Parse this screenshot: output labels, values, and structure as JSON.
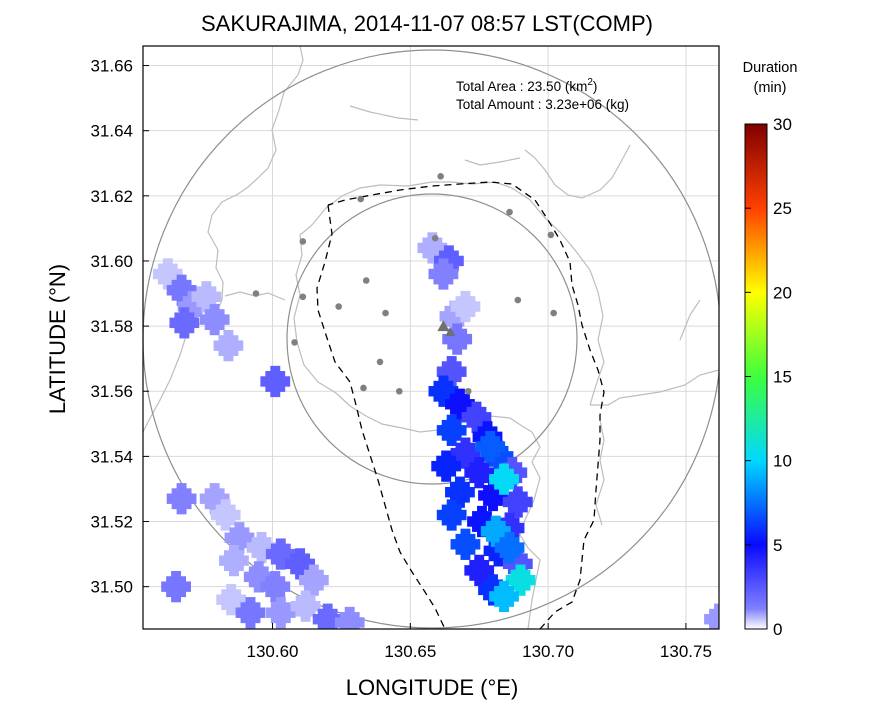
{
  "chart_data": {
    "type": "heatmap",
    "title": "SAKURAJIMA, 2014-11-07 08:57 LST(COMP)",
    "xlabel": "LONGITUDE (°E)",
    "ylabel": "LATITUDE (°N)",
    "xlim": [
      130.553,
      130.762
    ],
    "ylim": [
      31.487,
      31.666
    ],
    "xticks": [
      130.6,
      130.65,
      130.7,
      130.75
    ],
    "xtick_labels": [
      "130.60",
      "130.65",
      "130.70",
      "130.75"
    ],
    "yticks": [
      31.5,
      31.52,
      31.54,
      31.56,
      31.58,
      31.6,
      31.62,
      31.64,
      31.66
    ],
    "ytick_labels": [
      "31.50",
      "31.52",
      "31.54",
      "31.56",
      "31.58",
      "31.60",
      "31.62",
      "31.64",
      "31.66"
    ],
    "grid": true,
    "annotation": {
      "area_label": "Total Area   : 23.50 (km",
      "area_sup": "2",
      "area_close": ")",
      "amount_label": "Total Amount : 3.23e+06 (kg)"
    },
    "colorbar": {
      "title_line1": "Duration",
      "title_line2": "(min)",
      "min": 0,
      "max": 30,
      "ticks": [
        0,
        5,
        10,
        15,
        20,
        25,
        30
      ],
      "tick_labels": [
        "0",
        "5",
        "10",
        "15",
        "20",
        "25",
        "30"
      ],
      "colors": [
        "#ffffff",
        "#0a0aff",
        "#00d8ff",
        "#3dff3d",
        "#ffff00",
        "#ff8000",
        "#ff0000",
        "#800000"
      ]
    },
    "vent": {
      "lon": 130.662,
      "lat": 31.58
    },
    "stations": [
      {
        "lon": 130.661,
        "lat": 31.626
      },
      {
        "lon": 130.632,
        "lat": 31.619
      },
      {
        "lon": 130.686,
        "lat": 31.615
      },
      {
        "lon": 130.611,
        "lat": 31.606
      },
      {
        "lon": 130.659,
        "lat": 31.607
      },
      {
        "lon": 130.701,
        "lat": 31.608
      },
      {
        "lon": 130.594,
        "lat": 31.59
      },
      {
        "lon": 130.611,
        "lat": 31.589
      },
      {
        "lon": 130.634,
        "lat": 31.594
      },
      {
        "lon": 130.689,
        "lat": 31.588
      },
      {
        "lon": 130.624,
        "lat": 31.586
      },
      {
        "lon": 130.641,
        "lat": 31.584
      },
      {
        "lon": 130.702,
        "lat": 31.584
      },
      {
        "lon": 130.608,
        "lat": 31.575
      },
      {
        "lon": 130.639,
        "lat": 31.569
      },
      {
        "lon": 130.633,
        "lat": 31.561
      },
      {
        "lon": 130.646,
        "lat": 31.56
      },
      {
        "lon": 130.671,
        "lat": 31.56
      }
    ],
    "series": [
      {
        "value_range": [
          1,
          3
        ],
        "cells": [
          [
            130.562,
            31.596
          ],
          [
            130.567,
            31.591
          ],
          [
            130.571,
            31.586
          ],
          [
            130.576,
            31.589
          ],
          [
            130.568,
            31.581
          ],
          [
            130.579,
            31.582
          ],
          [
            130.584,
            31.574
          ],
          [
            130.601,
            31.563
          ],
          [
            130.567,
            31.527
          ],
          [
            130.579,
            31.527
          ],
          [
            130.583,
            31.522
          ],
          [
            130.565,
            31.5
          ],
          [
            130.588,
            31.515
          ],
          [
            130.596,
            31.512
          ],
          [
            130.603,
            31.51
          ],
          [
            130.595,
            31.503
          ],
          [
            130.586,
            31.508
          ],
          [
            130.61,
            31.507
          ],
          [
            130.601,
            31.5
          ],
          [
            130.615,
            31.502
          ],
          [
            130.585,
            31.496
          ],
          [
            130.592,
            31.492
          ],
          [
            130.603,
            31.492
          ],
          [
            130.612,
            31.494
          ],
          [
            130.62,
            31.49
          ],
          [
            130.628,
            31.489
          ],
          [
            130.658,
            31.604
          ],
          [
            130.664,
            31.6
          ],
          [
            130.662,
            31.596
          ],
          [
            130.666,
            31.583
          ],
          [
            130.67,
            31.586
          ],
          [
            130.667,
            31.576
          ],
          [
            130.762,
            31.49
          ]
        ]
      },
      {
        "value_range": [
          3,
          6
        ],
        "cells": [
          [
            130.665,
            31.566
          ],
          [
            130.662,
            31.56
          ],
          [
            130.668,
            31.556
          ],
          [
            130.674,
            31.552
          ],
          [
            130.665,
            31.548
          ],
          [
            130.678,
            31.546
          ],
          [
            130.67,
            31.541
          ],
          [
            130.682,
            31.54
          ],
          [
            130.663,
            31.537
          ],
          [
            130.675,
            31.535
          ],
          [
            130.687,
            31.535
          ],
          [
            130.668,
            31.529
          ],
          [
            130.68,
            31.528
          ],
          [
            130.689,
            31.526
          ],
          [
            130.665,
            31.522
          ],
          [
            130.676,
            31.52
          ],
          [
            130.686,
            31.518
          ],
          [
            130.67,
            31.513
          ],
          [
            130.682,
            31.511
          ],
          [
            130.675,
            31.505
          ],
          [
            130.689,
            31.507
          ],
          [
            130.68,
            31.499
          ]
        ]
      },
      {
        "value_range": [
          6,
          10
        ],
        "cells": [
          [
            130.679,
            31.543
          ],
          [
            130.684,
            31.533
          ],
          [
            130.681,
            31.517
          ],
          [
            130.686,
            31.512
          ],
          [
            130.69,
            31.502
          ],
          [
            130.684,
            31.497
          ]
        ]
      }
    ]
  }
}
